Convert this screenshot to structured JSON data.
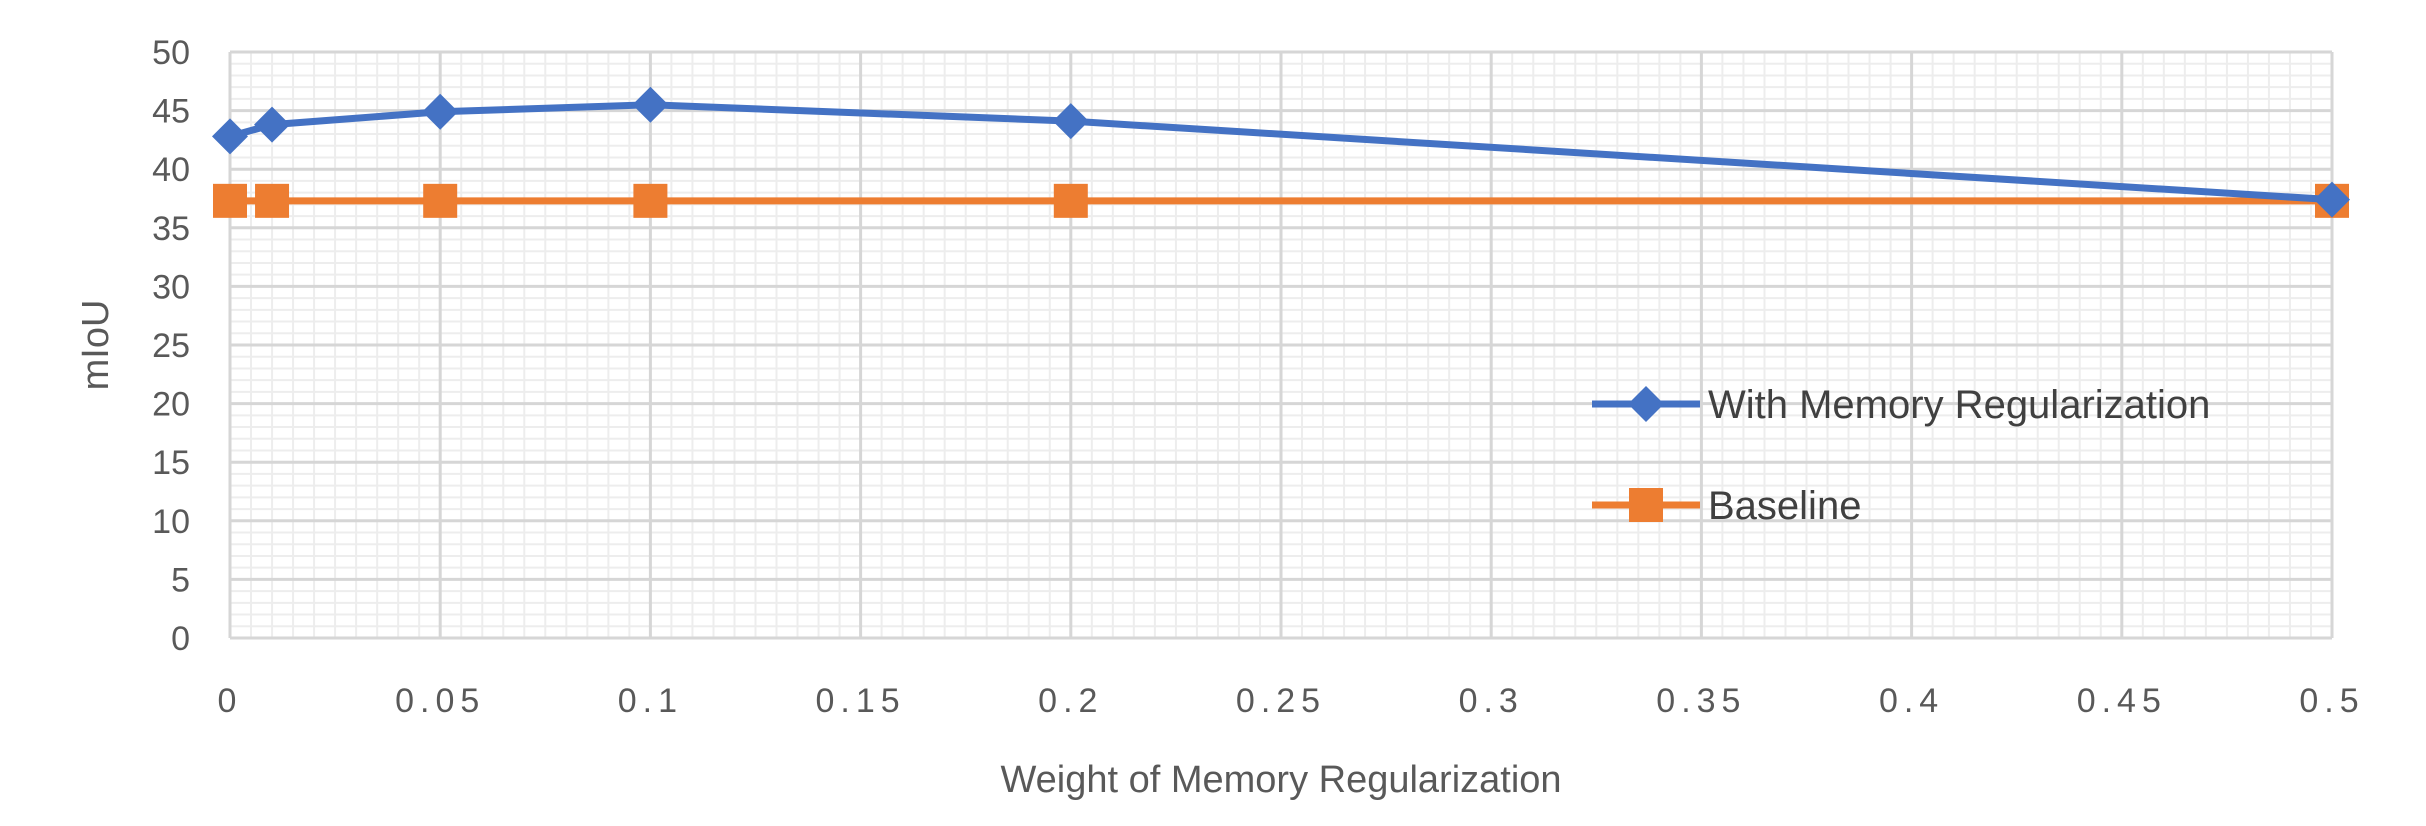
{
  "chart_data": {
    "type": "line",
    "xlabel": "Weight of Memory Regularization",
    "ylabel": "mIoU",
    "xlim": [
      0,
      0.5
    ],
    "ylim": [
      0,
      50
    ],
    "x_ticks": [
      "0",
      "0.05",
      "0.1",
      "0.15",
      "0.2",
      "0.25",
      "0.3",
      "0.35",
      "0.4",
      "0.45",
      "0.5"
    ],
    "y_ticks": [
      "0",
      "5",
      "10",
      "15",
      "20",
      "25",
      "30",
      "35",
      "40",
      "45",
      "50"
    ],
    "grid": true,
    "legend_position": "right",
    "series": [
      {
        "name": "With Memory Regularization",
        "color": "#4472C4",
        "marker": "diamond",
        "x": [
          0,
          0.01,
          0.05,
          0.1,
          0.2,
          0.5
        ],
        "values": [
          42.8,
          43.8,
          44.9,
          45.5,
          44.1,
          37.4
        ]
      },
      {
        "name": "Baseline",
        "color": "#ED7D31",
        "marker": "square",
        "x": [
          0,
          0.01,
          0.05,
          0.1,
          0.2,
          0.5
        ],
        "values": [
          37.3,
          37.3,
          37.3,
          37.3,
          37.3,
          37.3
        ]
      }
    ]
  }
}
